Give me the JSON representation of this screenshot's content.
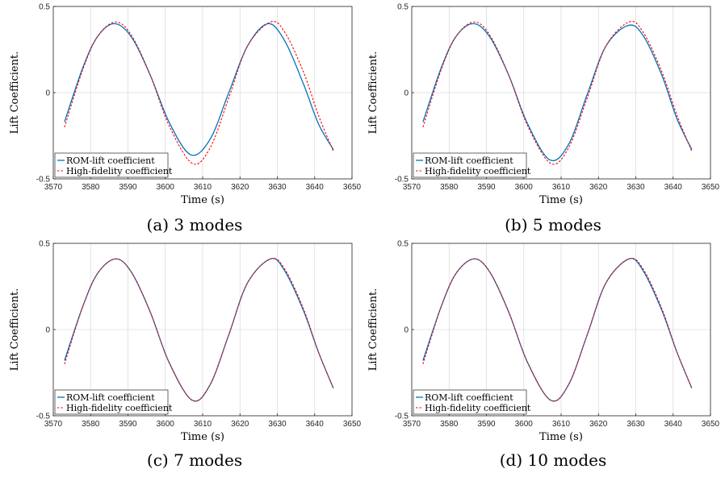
{
  "colors": {
    "rom": "#0072BD",
    "hf": "#ff0000",
    "grid": "#dcdcdc",
    "axis": "#262626"
  },
  "legend_labels": {
    "rom": "ROM-lift coefficient",
    "hf": "High-fidelity coefficient"
  },
  "chart_data": [
    {
      "type": "line",
      "caption": "(a) 3 modes",
      "xlabel": "Time (s)",
      "ylabel": "Lift Coefficient.",
      "xlim": [
        3570,
        3650
      ],
      "ylim": [
        -0.5,
        0.5
      ],
      "xticks": [
        3570,
        3580,
        3590,
        3600,
        3610,
        3620,
        3630,
        3640,
        3650
      ],
      "yticks": [
        -0.5,
        0,
        0.5
      ],
      "grid": true,
      "legend": "bottom-left",
      "series": [
        {
          "name": "ROM-lift coefficient",
          "style": "solid",
          "x": [
            3573,
            3578,
            3582,
            3586.5,
            3591,
            3596,
            3601,
            3606.8,
            3612,
            3617,
            3622,
            3627.5,
            3632,
            3637,
            3641,
            3645
          ],
          "y": [
            -0.17,
            0.15,
            0.33,
            0.4,
            0.32,
            0.1,
            -0.17,
            -0.36,
            -0.27,
            0.0,
            0.27,
            0.4,
            0.3,
            0.05,
            -0.18,
            -0.33
          ]
        },
        {
          "name": "High-fidelity coefficient",
          "style": "dashed",
          "x": [
            3573,
            3578,
            3582,
            3586.8,
            3591,
            3596,
            3601,
            3607.2,
            3612,
            3617,
            3622,
            3628.2,
            3632,
            3637,
            3641,
            3645
          ],
          "y": [
            -0.2,
            0.14,
            0.33,
            0.41,
            0.33,
            0.1,
            -0.19,
            -0.41,
            -0.32,
            -0.03,
            0.27,
            0.41,
            0.35,
            0.12,
            -0.13,
            -0.34
          ]
        }
      ]
    },
    {
      "type": "line",
      "caption": "(b) 5 modes",
      "xlabel": "Time (s)",
      "ylabel": "Lift Coefficient.",
      "xlim": [
        3570,
        3650
      ],
      "ylim": [
        -0.5,
        0.5
      ],
      "xticks": [
        3570,
        3580,
        3590,
        3600,
        3610,
        3620,
        3630,
        3640,
        3650
      ],
      "yticks": [
        -0.5,
        0,
        0.5
      ],
      "grid": true,
      "legend": "bottom-left",
      "series": [
        {
          "name": "ROM-lift coefficient",
          "style": "solid",
          "x": [
            3573,
            3578,
            3582,
            3586.6,
            3591,
            3596,
            3601,
            3607,
            3612,
            3617,
            3622,
            3628,
            3632,
            3637,
            3641,
            3645
          ],
          "y": [
            -0.17,
            0.15,
            0.33,
            0.4,
            0.32,
            0.1,
            -0.18,
            -0.39,
            -0.3,
            -0.01,
            0.27,
            0.39,
            0.33,
            0.1,
            -0.15,
            -0.33
          ]
        },
        {
          "name": "High-fidelity coefficient",
          "style": "dashed",
          "x": [
            3573,
            3578,
            3582,
            3586.8,
            3591,
            3596,
            3601,
            3607.2,
            3612,
            3617,
            3622,
            3628.2,
            3632,
            3637,
            3641,
            3645
          ],
          "y": [
            -0.2,
            0.14,
            0.33,
            0.41,
            0.33,
            0.1,
            -0.19,
            -0.41,
            -0.32,
            -0.03,
            0.27,
            0.41,
            0.35,
            0.12,
            -0.13,
            -0.34
          ]
        }
      ]
    },
    {
      "type": "line",
      "caption": "(c) 7 modes",
      "xlabel": "Time (s)",
      "ylabel": "Lift Coefficient.",
      "xlim": [
        3570,
        3650
      ],
      "ylim": [
        -0.5,
        0.5
      ],
      "xticks": [
        3570,
        3580,
        3590,
        3600,
        3610,
        3620,
        3630,
        3640,
        3650
      ],
      "yticks": [
        -0.5,
        0,
        0.5
      ],
      "grid": true,
      "legend": "bottom-left",
      "series": [
        {
          "name": "ROM-lift coefficient",
          "style": "solid",
          "x": [
            3573,
            3578,
            3582,
            3586.8,
            3591,
            3596,
            3601,
            3607.2,
            3612,
            3617,
            3622,
            3628.2,
            3632,
            3637,
            3641,
            3645
          ],
          "y": [
            -0.18,
            0.14,
            0.33,
            0.41,
            0.33,
            0.1,
            -0.19,
            -0.41,
            -0.32,
            -0.03,
            0.27,
            0.41,
            0.34,
            0.11,
            -0.13,
            -0.34
          ]
        },
        {
          "name": "High-fidelity coefficient",
          "style": "dashed",
          "x": [
            3573,
            3578,
            3582,
            3586.8,
            3591,
            3596,
            3601,
            3607.2,
            3612,
            3617,
            3622,
            3628.2,
            3632,
            3637,
            3641,
            3645
          ],
          "y": [
            -0.2,
            0.14,
            0.33,
            0.41,
            0.33,
            0.1,
            -0.19,
            -0.41,
            -0.32,
            -0.03,
            0.27,
            0.41,
            0.35,
            0.12,
            -0.13,
            -0.34
          ]
        }
      ]
    },
    {
      "type": "line",
      "caption": "(d) 10 modes",
      "xlabel": "Time (s)",
      "ylabel": "Lift Coefficient.",
      "xlim": [
        3570,
        3650
      ],
      "ylim": [
        -0.5,
        0.5
      ],
      "xticks": [
        3570,
        3580,
        3590,
        3600,
        3610,
        3620,
        3630,
        3640,
        3650
      ],
      "yticks": [
        -0.5,
        0,
        0.5
      ],
      "grid": true,
      "legend": "bottom-left",
      "series": [
        {
          "name": "ROM-lift coefficient",
          "style": "solid",
          "x": [
            3573,
            3578,
            3582,
            3586.8,
            3591,
            3596,
            3601,
            3607.2,
            3612,
            3617,
            3622,
            3628.2,
            3632,
            3637,
            3641,
            3645
          ],
          "y": [
            -0.18,
            0.14,
            0.33,
            0.41,
            0.33,
            0.1,
            -0.19,
            -0.41,
            -0.32,
            -0.03,
            0.27,
            0.41,
            0.34,
            0.11,
            -0.13,
            -0.34
          ]
        },
        {
          "name": "High-fidelity coefficient",
          "style": "dashed",
          "x": [
            3573,
            3578,
            3582,
            3586.8,
            3591,
            3596,
            3601,
            3607.2,
            3612,
            3617,
            3622,
            3628.2,
            3632,
            3637,
            3641,
            3645
          ],
          "y": [
            -0.2,
            0.14,
            0.33,
            0.41,
            0.33,
            0.1,
            -0.19,
            -0.41,
            -0.32,
            -0.03,
            0.27,
            0.41,
            0.35,
            0.12,
            -0.13,
            -0.34
          ]
        }
      ]
    }
  ]
}
